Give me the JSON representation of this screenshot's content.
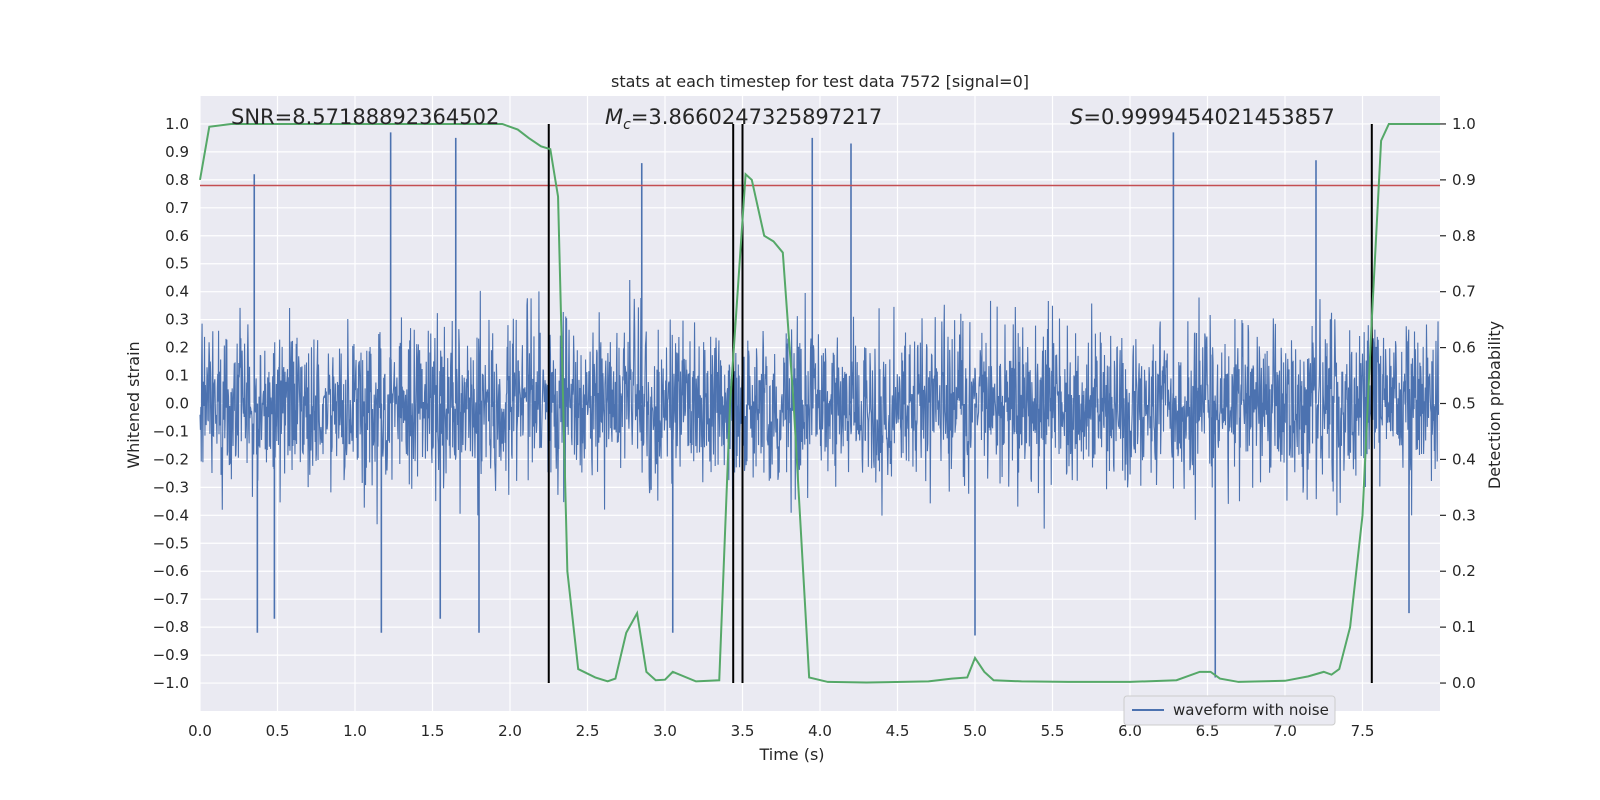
{
  "chart_data": {
    "type": "line",
    "title": "stats at each timestep for test data 7572 [signal=0]",
    "xlabel": "Time (s)",
    "ylabel": "Whitened strain",
    "y2label": "Detection probability",
    "xlim": [
      0.0,
      8.0
    ],
    "ylim": [
      -1.1,
      1.1
    ],
    "y2lim": [
      -0.05,
      1.05
    ],
    "xticks": [
      "0.0",
      "0.5",
      "1.0",
      "1.5",
      "2.0",
      "2.5",
      "3.0",
      "3.5",
      "4.0",
      "4.5",
      "5.0",
      "5.5",
      "6.0",
      "6.5",
      "7.0",
      "7.5"
    ],
    "yticks": [
      "1.0",
      "0.9",
      "0.8",
      "0.7",
      "0.6",
      "0.5",
      "0.4",
      "0.3",
      "0.2",
      "0.1",
      "0.0",
      "−0.1",
      "−0.2",
      "−0.3",
      "−0.4",
      "−0.5",
      "−0.6",
      "−0.7",
      "−0.8",
      "−0.9",
      "−1.0"
    ],
    "y2ticks": [
      "1.0",
      "0.9",
      "0.8",
      "0.7",
      "0.6",
      "0.5",
      "0.4",
      "0.3",
      "0.2",
      "0.1",
      "0.0"
    ],
    "annotations": {
      "snr": "SNR=8.57188892364502",
      "mc_symbol": "M",
      "mc_sub": "c",
      "mc_value": "=3.8660247325897217",
      "s_symbol": "S",
      "s_value": "=0.9999454021453857"
    },
    "threshold": 0.78,
    "vlines": [
      2.25,
      3.44,
      3.5,
      7.56
    ],
    "legend": {
      "label": "waveform with noise",
      "placement": "lower-right"
    },
    "series": [
      {
        "name": "waveform with noise",
        "axis": "left",
        "color": "#4c72b0",
        "style": "dense noise trace, typical amplitude ±0.45, peaks to about ±0.97",
        "peaks": [
          {
            "x": 0.35,
            "y": 0.82
          },
          {
            "x": 0.37,
            "y": -0.82
          },
          {
            "x": 0.48,
            "y": -0.77
          },
          {
            "x": 1.23,
            "y": 0.97
          },
          {
            "x": 1.17,
            "y": -0.82
          },
          {
            "x": 1.65,
            "y": 0.95
          },
          {
            "x": 1.55,
            "y": -0.77
          },
          {
            "x": 1.8,
            "y": -0.82
          },
          {
            "x": 2.85,
            "y": 0.86
          },
          {
            "x": 3.05,
            "y": -0.82
          },
          {
            "x": 3.95,
            "y": 0.95
          },
          {
            "x": 4.2,
            "y": 0.93
          },
          {
            "x": 5.0,
            "y": -0.83
          },
          {
            "x": 6.28,
            "y": 0.97
          },
          {
            "x": 6.55,
            "y": -0.98
          },
          {
            "x": 7.2,
            "y": 0.87
          },
          {
            "x": 7.8,
            "y": -0.75
          }
        ]
      },
      {
        "name": "detection probability",
        "axis": "right",
        "color": "#55a868",
        "x": [
          0.0,
          0.06,
          0.2,
          0.5,
          1.0,
          1.5,
          1.95,
          2.05,
          2.12,
          2.2,
          2.26,
          2.31,
          2.37,
          2.44,
          2.55,
          2.63,
          2.68,
          2.75,
          2.82,
          2.88,
          2.94,
          3.0,
          3.05,
          3.2,
          3.35,
          3.42,
          3.52,
          3.56,
          3.64,
          3.7,
          3.76,
          3.83,
          3.93,
          4.05,
          4.3,
          4.7,
          4.85,
          4.95,
          5.0,
          5.06,
          5.12,
          5.3,
          5.6,
          6.0,
          6.3,
          6.45,
          6.52,
          6.58,
          6.7,
          7.0,
          7.15,
          7.25,
          7.3,
          7.35,
          7.42,
          7.5,
          7.56,
          7.62,
          7.67,
          7.74,
          7.82,
          8.0
        ],
        "y": [
          0.9,
          0.995,
          1.0,
          1.0,
          1.0,
          1.0,
          1.0,
          0.99,
          0.975,
          0.96,
          0.955,
          0.87,
          0.2,
          0.025,
          0.01,
          0.003,
          0.008,
          0.09,
          0.125,
          0.02,
          0.005,
          0.006,
          0.02,
          0.003,
          0.005,
          0.5,
          0.91,
          0.9,
          0.8,
          0.79,
          0.77,
          0.5,
          0.01,
          0.002,
          0.001,
          0.003,
          0.008,
          0.01,
          0.045,
          0.02,
          0.005,
          0.003,
          0.002,
          0.002,
          0.005,
          0.02,
          0.02,
          0.008,
          0.002,
          0.004,
          0.012,
          0.02,
          0.015,
          0.025,
          0.1,
          0.3,
          0.65,
          0.97,
          1.0,
          1.0,
          1.0,
          1.0
        ]
      }
    ]
  }
}
